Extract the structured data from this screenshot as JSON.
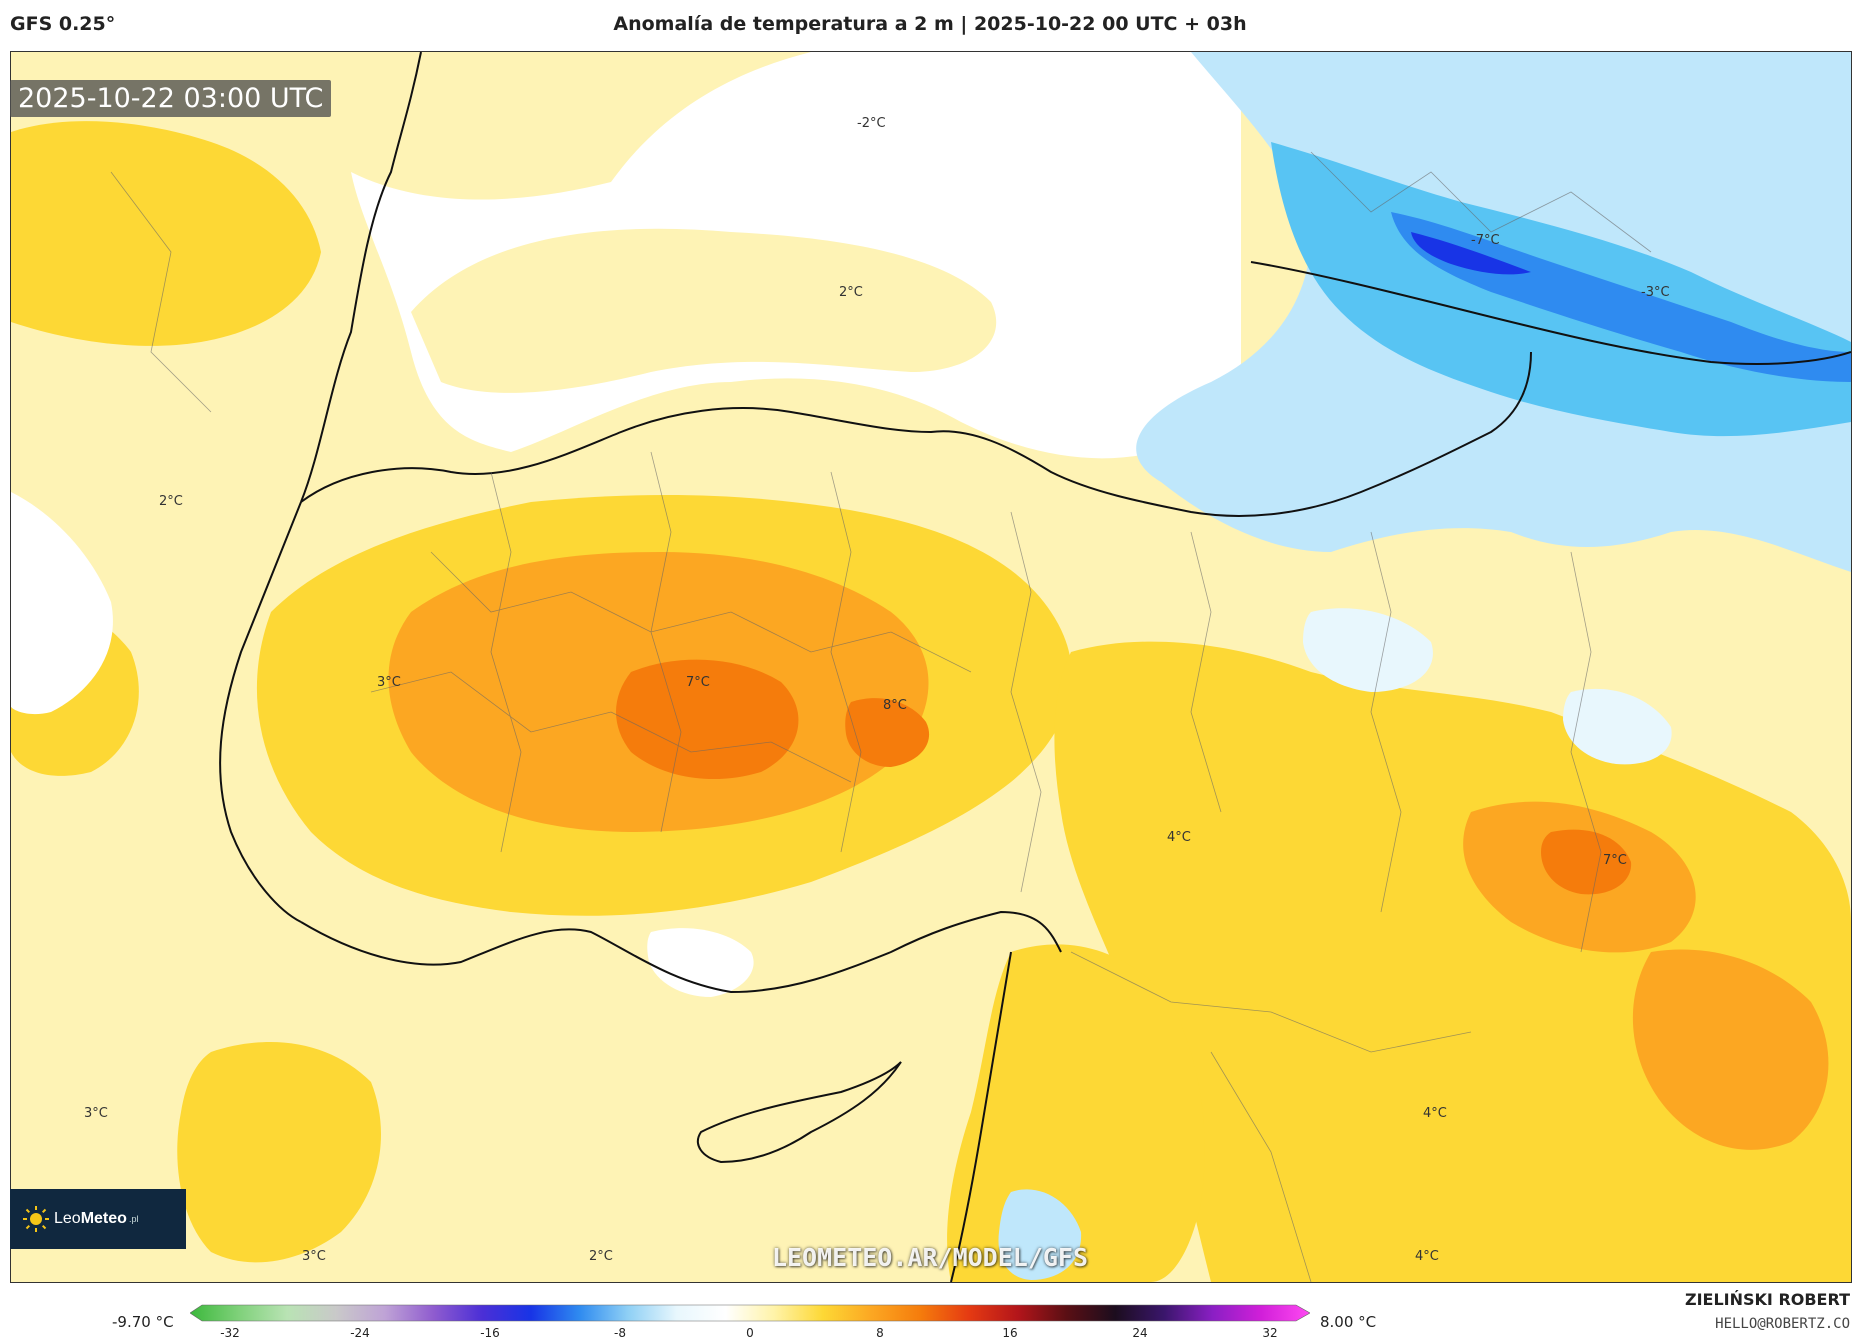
{
  "header": {
    "model": "GFS 0.25°",
    "title": "Anomalía de temperatura a 2 m | 2025-10-22 00 UTC + 03h"
  },
  "map": {
    "timestamp": "2025-10-22 03:00 UTC",
    "labels": [
      {
        "text": "-2°C"
      },
      {
        "text": "-7°C"
      },
      {
        "text": "-3°C"
      },
      {
        "text": "2°C"
      },
      {
        "text": "2°C"
      },
      {
        "text": "3°C"
      },
      {
        "text": "7°C"
      },
      {
        "text": "8°C"
      },
      {
        "text": "4°C"
      },
      {
        "text": "7°C"
      },
      {
        "text": "3°C"
      },
      {
        "text": "4°C"
      },
      {
        "text": "3°C"
      },
      {
        "text": "2°C"
      },
      {
        "text": "4°C"
      }
    ],
    "watermark": "LEOMETEO.AR/MODEL/GFS"
  },
  "logo": {
    "part_a": "Leo",
    "part_b": "Meteo",
    "part_c": ".pl"
  },
  "colorbar": {
    "min_label": "-9.70 °C",
    "max_label": "8.00 °C",
    "ticks": [
      "-32",
      "-24",
      "-16",
      "-8",
      "0",
      "8",
      "16",
      "24",
      "32"
    ],
    "colors": [
      "#3cb83c",
      "#7fd17a",
      "#b9e3b4",
      "#c9c9c9",
      "#bfa3d6",
      "#8f5ccf",
      "#4b2fd6",
      "#1834e6",
      "#2f8bf0",
      "#8fd0f5",
      "#e8f7fd",
      "#ffffff",
      "#fff3a8",
      "#fdd835",
      "#fca722",
      "#f57c0c",
      "#e53a12",
      "#b3151a",
      "#5a0f14",
      "#1c0d1e",
      "#3a166b",
      "#8a1fc4",
      "#d11fd9",
      "#ff4af2"
    ]
  },
  "author": {
    "name": "ZIELIŃSKI ROBERT",
    "email": "HELLO@ROBERTZ.CO"
  }
}
